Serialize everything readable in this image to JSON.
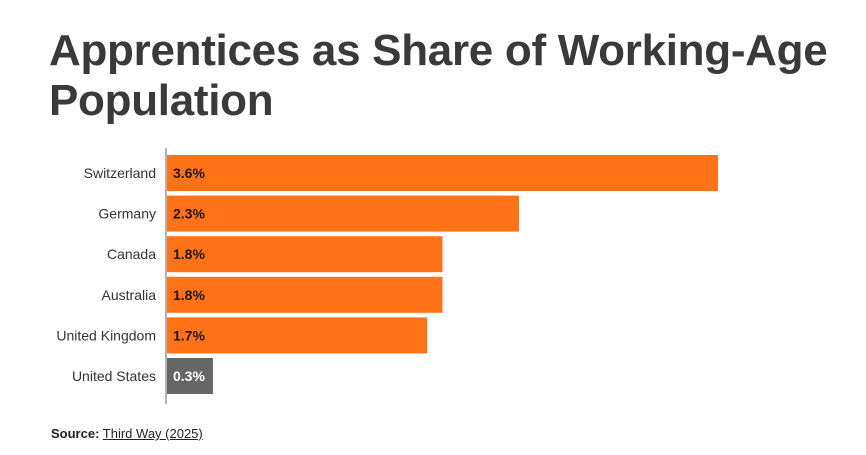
{
  "colors": {
    "highlight": "#ff7216",
    "muted": "#666666",
    "axis": "#9a9a9a",
    "title": "#3a3a3a",
    "label": "#333333",
    "value_on_highlight": "#1a1a1a",
    "value_on_muted": "#ffffff"
  },
  "chart_data": {
    "type": "bar",
    "orientation": "horizontal",
    "title": "Apprentices as Share of Working-Age Population",
    "categories": [
      "Switzerland",
      "Germany",
      "Canada",
      "Australia",
      "United Kingdom",
      "United States"
    ],
    "values": [
      3.6,
      2.3,
      1.8,
      1.8,
      1.7,
      0.3
    ],
    "value_labels": [
      "3.6%",
      "2.3%",
      "1.8%",
      "1.8%",
      "1.7%",
      "0.3%"
    ],
    "bar_colors": [
      "#ff7216",
      "#ff7216",
      "#ff7216",
      "#ff7216",
      "#ff7216",
      "#666666"
    ],
    "xlim": [
      0,
      3.6
    ],
    "grid": false,
    "legend": "none"
  },
  "source": {
    "label": "Source:",
    "link_text": "Third Way (2025)"
  }
}
